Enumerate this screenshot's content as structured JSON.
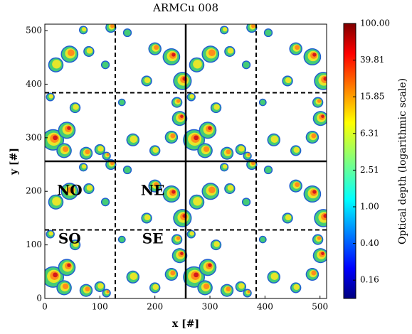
{
  "chart_data": {
    "type": "heatmap",
    "title": "ARMCu 008",
    "xlabel": "x [#]",
    "ylabel": "y [#]",
    "xlim": [
      0,
      512
    ],
    "ylim": [
      0,
      512
    ],
    "xticks": [
      0,
      100,
      200,
      300,
      400,
      500
    ],
    "yticks": [
      0,
      100,
      200,
      300,
      400,
      500
    ],
    "solid_lines": [
      256
    ],
    "dashed_lines": [
      128,
      384
    ],
    "annotations": [
      "NO",
      "NE",
      "SO",
      "SE"
    ],
    "colorbar": {
      "label": "Optical depth (logarithmic scale)",
      "colormap": "jet",
      "log": true,
      "lim": [
        0.1,
        100
      ],
      "ticks": [
        {
          "value": 0.1585,
          "label": "0.16"
        },
        {
          "value": 0.3981,
          "label": "0.40"
        },
        {
          "value": 1,
          "label": "1.00"
        },
        {
          "value": 2.512,
          "label": "2.51"
        },
        {
          "value": 6.31,
          "label": "6.31"
        },
        {
          "value": 15.85,
          "label": "15.85"
        },
        {
          "value": 39.81,
          "label": "39.81"
        },
        {
          "value": 100,
          "label": "100.00"
        }
      ]
    }
  }
}
